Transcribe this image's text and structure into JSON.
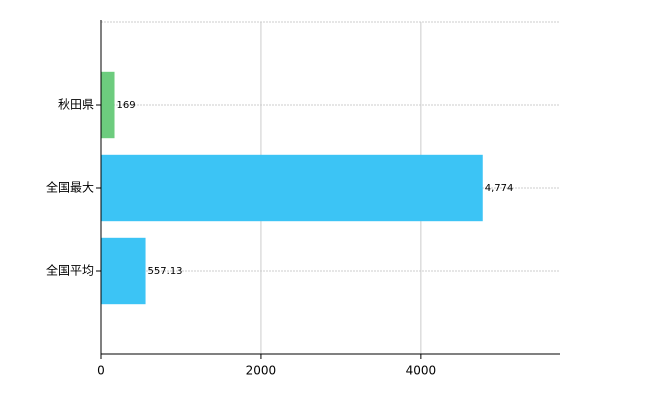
{
  "chart_data": {
    "type": "hbar",
    "categories": [
      "秋田県",
      "全国最大",
      "全国平均"
    ],
    "values": [
      169,
      4774,
      557.13
    ],
    "value_labels": [
      "169",
      "4,774",
      "557.13"
    ],
    "colors": [
      "#6dcc7e",
      "#3cc4f5",
      "#3cc4f5"
    ],
    "xlim": [
      0,
      5740
    ],
    "xticks": [
      0,
      2000,
      4000
    ],
    "grid": true
  }
}
